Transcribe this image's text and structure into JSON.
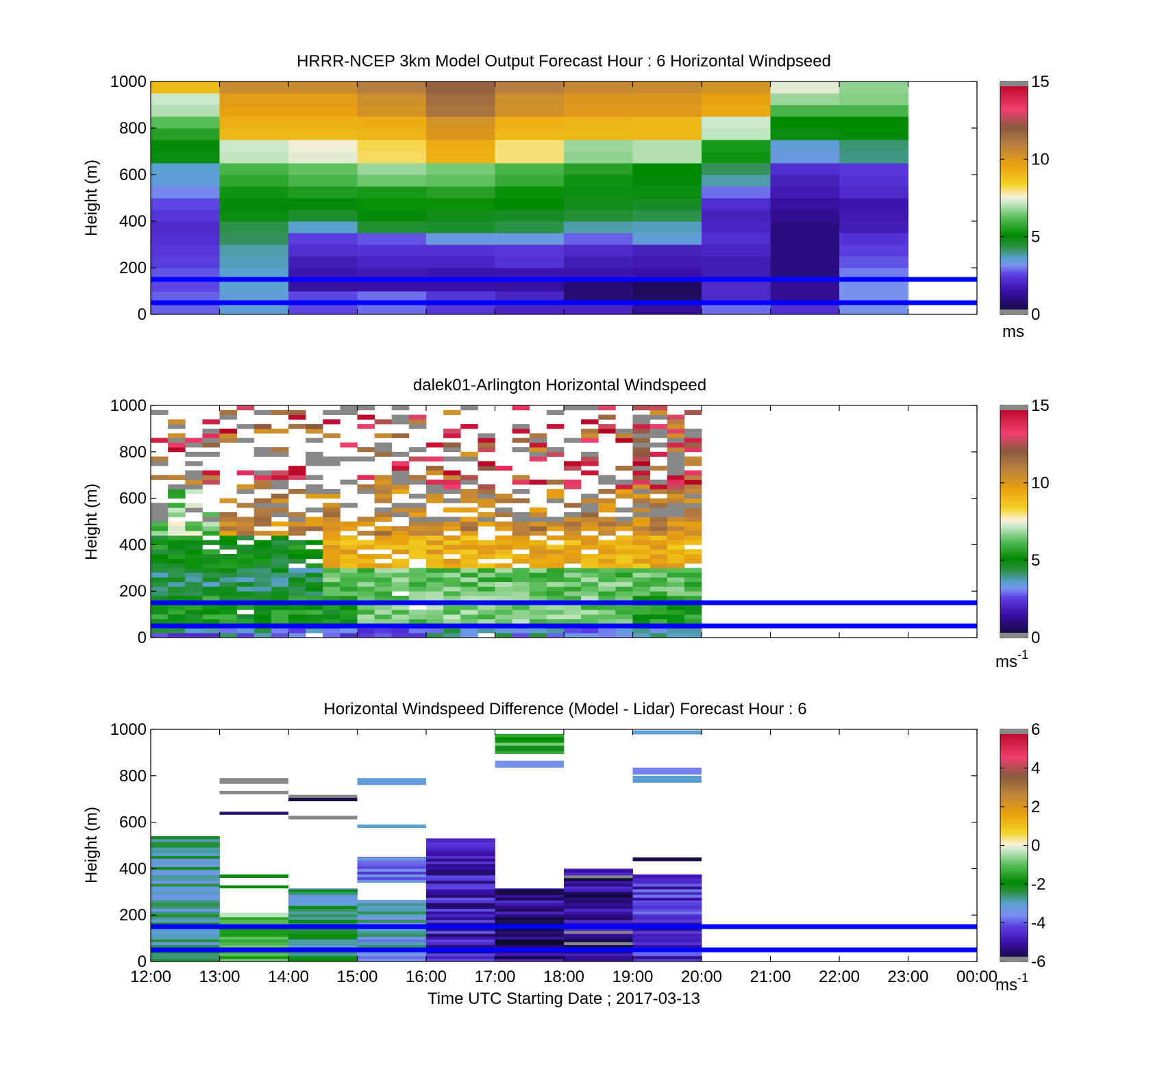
{
  "xlabel": "Time UTC  Starting Date ; 2017-03-13",
  "x_ticks": [
    "12:00",
    "13:00",
    "14:00",
    "15:00",
    "16:00",
    "17:00",
    "18:00",
    "19:00",
    "20:00",
    "21:00",
    "22:00",
    "23:00",
    "00:00"
  ],
  "ref_line_heights_m": [
    50,
    150
  ],
  "ref_line_color": "#0000ff",
  "chart_data": [
    {
      "type": "heatmap",
      "title": "HRRR-NCEP 3km Model Output   Forecast Hour : 6 Horizontal Windpseed",
      "ylabel": "Height (m)",
      "ylim": [
        0,
        1000
      ],
      "y_ticks": [
        "0",
        "200",
        "400",
        "600",
        "800",
        "1000"
      ],
      "xlim_hours": [
        0,
        12
      ],
      "colorbar": {
        "ticks": [
          "0",
          "5",
          "10",
          "15"
        ],
        "range": [
          0,
          15
        ],
        "unit": "ms"
      },
      "columns_note_hours_start": [
        0,
        1,
        2,
        3,
        4,
        5,
        6,
        7,
        8,
        9,
        10
      ],
      "heights_m": [
        25,
        75,
        125,
        175,
        225,
        275,
        325,
        375,
        425,
        475,
        525,
        575,
        625,
        675,
        725,
        775,
        825,
        875,
        925,
        975
      ],
      "values": [
        [
          2.8,
          3.5,
          2.6,
          2.9,
          2.4,
          2.0,
          2.0,
          1.3,
          2.9,
          2.2,
          3.2
        ],
        [
          2.8,
          3.5,
          2.6,
          2.9,
          2.4,
          2.0,
          0.9,
          0.6,
          2.1,
          1.2,
          3.2
        ],
        [
          2.6,
          3.6,
          1.4,
          1.5,
          1.5,
          1.4,
          0.9,
          0.6,
          2.1,
          1.2,
          3.2
        ],
        [
          2.7,
          3.6,
          1.6,
          1.7,
          1.6,
          1.6,
          1.6,
          1.5,
          1.8,
          1.0,
          3.0
        ],
        [
          2.5,
          3.7,
          1.8,
          2.0,
          2.0,
          2.3,
          1.8,
          1.7,
          1.8,
          1.0,
          2.7
        ],
        [
          2.4,
          3.8,
          2.2,
          2.3,
          2.3,
          2.4,
          2.1,
          1.9,
          2.0,
          1.0,
          2.5
        ],
        [
          2.2,
          4.2,
          2.5,
          2.7,
          3.4,
          3.4,
          2.8,
          3.5,
          2.2,
          1.0,
          2.3
        ],
        [
          2.1,
          4.3,
          3.6,
          4.5,
          4.6,
          4.3,
          3.8,
          3.7,
          2.0,
          1.0,
          1.8
        ],
        [
          2.4,
          4.9,
          4.6,
          5.0,
          4.8,
          4.7,
          4.5,
          4.3,
          1.9,
          1.2,
          1.7
        ],
        [
          2.6,
          5.0,
          5.0,
          5.2,
          5.2,
          5.1,
          4.8,
          4.7,
          2.2,
          1.4,
          1.6
        ],
        [
          3.1,
          5.3,
          5.5,
          5.4,
          5.6,
          5.2,
          4.9,
          4.9,
          2.9,
          1.7,
          2.1
        ],
        [
          3.5,
          5.7,
          6.0,
          6.4,
          6.3,
          5.8,
          5.3,
          5.0,
          3.8,
          1.9,
          2.3
        ],
        [
          3.6,
          6.0,
          6.3,
          6.8,
          6.5,
          6.0,
          5.6,
          5.1,
          4.2,
          2.2,
          2.4
        ],
        [
          4.9,
          7.1,
          7.4,
          8.1,
          9.2,
          8.0,
          6.7,
          7.0,
          5.3,
          3.4,
          4.0
        ],
        [
          5.0,
          7.2,
          7.5,
          8.2,
          9.3,
          8.0,
          6.8,
          7.0,
          5.4,
          3.5,
          4.1
        ],
        [
          5.6,
          9.0,
          9.0,
          9.1,
          10.0,
          9.0,
          9.0,
          9.0,
          7.1,
          4.9,
          5.0
        ],
        [
          6.2,
          9.2,
          9.2,
          9.3,
          10.2,
          9.2,
          9.1,
          9.0,
          7.2,
          5.1,
          5.1
        ],
        [
          7.0,
          9.6,
          9.6,
          10.2,
          11.3,
          10.3,
          9.9,
          9.9,
          9.4,
          6.0,
          6.0
        ],
        [
          7.2,
          9.8,
          9.8,
          10.4,
          11.5,
          10.4,
          10.0,
          10.0,
          9.6,
          6.8,
          6.6
        ],
        [
          8.9,
          10.5,
          10.5,
          11.0,
          11.8,
          11.0,
          10.6,
          10.5,
          10.2,
          7.4,
          6.7
        ]
      ]
    },
    {
      "type": "heatmap",
      "title": "dalek01-Arlington  Horizontal Windspeed",
      "ylabel": "Height (m)",
      "ylim": [
        0,
        1000
      ],
      "y_ticks": [
        "0",
        "200",
        "400",
        "600",
        "800",
        "1000"
      ],
      "xlim_hours": [
        0,
        12
      ],
      "data_coverage_hours": [
        0,
        7.83
      ],
      "colorbar": {
        "ticks": [
          "0",
          "5",
          "10",
          "15"
        ],
        "range": [
          0,
          15
        ],
        "unit": "ms",
        "unit_exponent": "-1"
      }
    },
    {
      "type": "heatmap",
      "title": "Horizontal Windspeed Difference (Model - Lidar) Forecast Hour : 6",
      "ylabel": "Height (m)",
      "ylim": [
        0,
        1000
      ],
      "y_ticks": [
        "0",
        "200",
        "400",
        "600",
        "800",
        "1000"
      ],
      "xlim_hours": [
        0,
        12
      ],
      "colorbar": {
        "ticks": [
          "-6",
          "-4",
          "-2",
          "0",
          "2",
          "4",
          "6"
        ],
        "range": [
          -6,
          6
        ],
        "unit": "ms",
        "unit_exponent": "-1"
      },
      "segments": [
        {
          "hour": 0,
          "y0": 0,
          "y1": 540,
          "value": -2.8
        },
        {
          "hour": 1,
          "y0": 0,
          "y1": 210,
          "value": -1.0
        },
        {
          "hour": 1,
          "y0": 360,
          "y1": 375,
          "value": -2.0
        },
        {
          "hour": 1,
          "y0": 315,
          "y1": 328,
          "value": -2.0
        },
        {
          "hour": 1,
          "y0": 632,
          "y1": 645,
          "value": -5.5
        },
        {
          "hour": 1,
          "y0": 720,
          "y1": 735,
          "value": 6.5
        },
        {
          "hour": 1,
          "y0": 765,
          "y1": 790,
          "value": 6.5
        },
        {
          "hour": 2,
          "y0": 0,
          "y1": 315,
          "value": -2.6
        },
        {
          "hour": 2,
          "y0": 612,
          "y1": 628,
          "value": 6.5
        },
        {
          "hour": 2,
          "y0": 690,
          "y1": 705,
          "value": -5.8
        },
        {
          "hour": 2,
          "y0": 705,
          "y1": 718,
          "value": 6.5
        },
        {
          "hour": 3,
          "y0": 0,
          "y1": 265,
          "value": -3.2
        },
        {
          "hour": 3,
          "y0": 340,
          "y1": 450,
          "value": -3.6
        },
        {
          "hour": 3,
          "y0": 575,
          "y1": 590,
          "value": -3.0
        },
        {
          "hour": 3,
          "y0": 760,
          "y1": 790,
          "value": -3.2
        },
        {
          "hour": 4,
          "y0": 0,
          "y1": 530,
          "value": -4.8
        },
        {
          "hour": 5,
          "y0": 0,
          "y1": 315,
          "value": -5.2
        },
        {
          "hour": 5,
          "y0": 835,
          "y1": 865,
          "value": -3.5
        },
        {
          "hour": 5,
          "y0": 895,
          "y1": 980,
          "value": -1.5
        },
        {
          "hour": 6,
          "y0": 0,
          "y1": 400,
          "value": -5.3
        },
        {
          "hour": 7,
          "y0": 0,
          "y1": 375,
          "value": -4.5
        },
        {
          "hour": 7,
          "y0": 432,
          "y1": 448,
          "value": -5.8
        },
        {
          "hour": 7,
          "y0": 770,
          "y1": 800,
          "value": -3.0
        },
        {
          "hour": 7,
          "y0": 805,
          "y1": 835,
          "value": -3.7
        },
        {
          "hour": 7,
          "y0": 978,
          "y1": 995,
          "value": -3.0
        }
      ]
    }
  ]
}
